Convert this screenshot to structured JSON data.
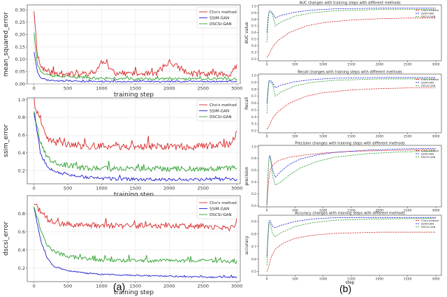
{
  "panel_labels": [
    "(a)",
    "(b)"
  ],
  "colors": {
    "red": "#d62728",
    "blue": "#1f1fd0",
    "green": "#2ca02c",
    "axis": "#333333",
    "grid": "#e6e6e6"
  },
  "chart_data": [
    {
      "id": "a1",
      "type": "line",
      "title": "",
      "xlabel": "training step",
      "ylabel": "mean_squared_error",
      "xlim": [
        -100,
        3050
      ],
      "ylim": [
        0,
        0.32
      ],
      "xticks": [
        0,
        500,
        1000,
        1500,
        2000,
        2500,
        3000
      ],
      "yticks": [
        0.0,
        0.05,
        0.1,
        0.15,
        0.2,
        0.25,
        0.3
      ],
      "ytick_labels": [
        "0.00",
        "0.05",
        "0.10",
        "0.15",
        "0.20",
        "0.25",
        "0.30"
      ],
      "legend": [
        "Cho's method",
        "SSIM-GAN",
        "DSCSI-GAN"
      ],
      "legend_position": "top-right",
      "series": [
        {
          "name": "Cho's method",
          "color": "red",
          "style": "solid",
          "x": [
            0,
            50,
            100,
            200,
            300,
            400,
            500,
            700,
            900,
            1000,
            1200,
            1500,
            1800,
            2000,
            2300,
            2600,
            2900,
            3000
          ],
          "y": [
            0.3,
            0.12,
            0.07,
            0.05,
            0.045,
            0.04,
            0.04,
            0.04,
            0.045,
            0.09,
            0.045,
            0.04,
            0.04,
            0.09,
            0.04,
            0.04,
            0.04,
            0.07
          ],
          "noise": 0.012,
          "seed": 11
        },
        {
          "name": "SSIM-GAN",
          "color": "blue",
          "style": "solid",
          "x": [
            0,
            50,
            100,
            200,
            400,
            700,
            1000,
            1500,
            2000,
            2500,
            3000
          ],
          "y": [
            0.13,
            0.05,
            0.025,
            0.015,
            0.012,
            0.01,
            0.01,
            0.01,
            0.01,
            0.01,
            0.01
          ],
          "noise": 0.003,
          "seed": 23
        },
        {
          "name": "DSCSI-GAN",
          "color": "green",
          "style": "solid",
          "x": [
            0,
            50,
            100,
            200,
            400,
            700,
            1000,
            1500,
            2000,
            2500,
            3000
          ],
          "y": [
            0.21,
            0.08,
            0.05,
            0.035,
            0.03,
            0.025,
            0.022,
            0.02,
            0.02,
            0.02,
            0.02
          ],
          "noise": 0.005,
          "seed": 37
        }
      ]
    },
    {
      "id": "a2",
      "type": "line",
      "title": "",
      "xlabel": "training step",
      "ylabel": "ssim_error",
      "xlim": [
        -100,
        3050
      ],
      "ylim": [
        0.05,
        1.02
      ],
      "xticks": [
        0,
        500,
        1000,
        1500,
        2000,
        2500,
        3000
      ],
      "yticks": [
        0.2,
        0.4,
        0.6,
        0.8,
        1.0
      ],
      "ytick_labels": [
        "0.2",
        "0.4",
        "0.6",
        "0.8",
        "1.0"
      ],
      "legend": [
        "Cho's method",
        "SSIM-GAN",
        "DSCSI-GAN"
      ],
      "legend_position": "top-right",
      "series": [
        {
          "name": "Cho's method",
          "color": "red",
          "style": "solid",
          "x": [
            0,
            100,
            200,
            400,
            700,
            1000,
            1500,
            2000,
            2500,
            2900,
            3000
          ],
          "y": [
            0.97,
            0.72,
            0.55,
            0.5,
            0.48,
            0.47,
            0.47,
            0.47,
            0.47,
            0.5,
            0.62
          ],
          "noise": 0.04,
          "seed": 41
        },
        {
          "name": "SSIM-GAN",
          "color": "blue",
          "style": "solid",
          "x": [
            0,
            100,
            200,
            400,
            700,
            1000,
            1500,
            2000,
            2500,
            3000
          ],
          "y": [
            0.86,
            0.38,
            0.24,
            0.17,
            0.13,
            0.11,
            0.1,
            0.1,
            0.1,
            0.1
          ],
          "noise": 0.018,
          "seed": 53
        },
        {
          "name": "DSCSI-GAN",
          "color": "green",
          "style": "solid",
          "x": [
            0,
            100,
            200,
            400,
            700,
            1000,
            1500,
            2000,
            2500,
            3000
          ],
          "y": [
            0.88,
            0.5,
            0.34,
            0.27,
            0.23,
            0.22,
            0.22,
            0.22,
            0.22,
            0.23
          ],
          "noise": 0.03,
          "seed": 67
        }
      ]
    },
    {
      "id": "a3",
      "type": "line",
      "title": "",
      "xlabel": "training step",
      "ylabel": "dscsi_error",
      "xlim": [
        -100,
        3050
      ],
      "ylim": [
        0.05,
        1.0
      ],
      "xticks": [
        0,
        500,
        1000,
        1500,
        2000,
        2500,
        3000
      ],
      "yticks": [
        0.2,
        0.4,
        0.6,
        0.8
      ],
      "ytick_labels": [
        "0.2",
        "0.4",
        "0.6",
        "0.8"
      ],
      "legend": [
        "Cho's method",
        "SSIM-GAN",
        "DSCSI-GAN"
      ],
      "legend_position": "top-right",
      "series": [
        {
          "name": "Cho's method",
          "color": "red",
          "style": "solid",
          "x": [
            0,
            100,
            200,
            300,
            500,
            1000,
            1500,
            2000,
            2500,
            2900,
            3000
          ],
          "y": [
            0.92,
            0.82,
            0.74,
            0.7,
            0.68,
            0.67,
            0.67,
            0.67,
            0.66,
            0.64,
            0.7
          ],
          "noise": 0.03,
          "seed": 71
        },
        {
          "name": "SSIM-GAN",
          "color": "blue",
          "style": "solid",
          "x": [
            0,
            100,
            200,
            300,
            500,
            800,
            1000,
            1500,
            2000,
            2500,
            3000
          ],
          "y": [
            0.87,
            0.5,
            0.3,
            0.22,
            0.17,
            0.14,
            0.13,
            0.12,
            0.11,
            0.1,
            0.1
          ],
          "noise": 0.008,
          "seed": 83
        },
        {
          "name": "DSCSI-GAN",
          "color": "green",
          "style": "solid",
          "x": [
            0,
            100,
            200,
            300,
            500,
            800,
            1000,
            1500,
            2000,
            2500,
            3000
          ],
          "y": [
            0.89,
            0.62,
            0.45,
            0.38,
            0.33,
            0.3,
            0.29,
            0.28,
            0.28,
            0.28,
            0.27
          ],
          "noise": 0.02,
          "seed": 97
        }
      ]
    },
    {
      "id": "b1",
      "type": "line",
      "title": "AUC changes with training steps with different methods",
      "xlabel": "",
      "ylabel": "AUC value",
      "xlim": [
        -150,
        3100
      ],
      "ylim": [
        0.17,
        1.02
      ],
      "xticks": [
        0,
        500,
        1000,
        1500,
        2000,
        2500,
        3000
      ],
      "yticks": [
        0.2,
        0.3,
        0.4,
        0.5,
        0.6,
        0.7,
        0.8,
        0.9,
        1.0
      ],
      "ytick_labels": [
        "0.2",
        "0.3",
        "0.4",
        "0.5",
        "0.6",
        "0.7",
        "0.8",
        "0.9",
        "1.0"
      ],
      "legend": [
        "Cho's method",
        "SSIM-GAN",
        "DSCSI-GAN"
      ],
      "legend_position": "top-right",
      "series": [
        {
          "name": "Cho's method",
          "color": "red",
          "style": "dashed",
          "x": [
            0,
            40,
            100,
            200,
            400,
            700,
            1000,
            1500,
            2000,
            2500,
            3000
          ],
          "y": [
            0.22,
            0.27,
            0.38,
            0.48,
            0.6,
            0.7,
            0.75,
            0.79,
            0.81,
            0.82,
            0.82
          ]
        },
        {
          "name": "SSIM-GAN",
          "color": "blue",
          "style": "dashed",
          "x": [
            0,
            30,
            60,
            100,
            150,
            250,
            500,
            800,
            1200,
            2000,
            3000
          ],
          "y": [
            0.6,
            0.92,
            0.93,
            0.9,
            0.82,
            0.86,
            0.91,
            0.94,
            0.96,
            0.97,
            0.97
          ]
        },
        {
          "name": "DSCSI-GAN",
          "color": "green",
          "style": "dashed",
          "x": [
            0,
            30,
            60,
            100,
            150,
            250,
            500,
            800,
            1200,
            2000,
            3000
          ],
          "y": [
            0.45,
            0.9,
            0.91,
            0.88,
            0.7,
            0.76,
            0.85,
            0.9,
            0.93,
            0.95,
            0.95
          ]
        }
      ]
    },
    {
      "id": "b2",
      "type": "line",
      "title": "Recall changes with training steps with  different methods",
      "xlabel": "",
      "ylabel": "Recall",
      "xlim": [
        -150,
        3100
      ],
      "ylim": [
        0.17,
        1.02
      ],
      "xticks": [
        0,
        500,
        1000,
        1500,
        2000,
        2500,
        3000
      ],
      "yticks": [
        0.2,
        0.3,
        0.4,
        0.5,
        0.6,
        0.7,
        0.8,
        0.9,
        1.0
      ],
      "ytick_labels": [
        "0.2",
        "0.3",
        "0.4",
        "0.5",
        "0.6",
        "0.7",
        "0.8",
        "0.9",
        "1.0"
      ],
      "legend": [
        "Cho's method",
        "SSIM-GAN",
        "DSCSI-GAN"
      ],
      "legend_position": "top-right",
      "series": [
        {
          "name": "Cho's method",
          "color": "red",
          "style": "dashed",
          "x": [
            0,
            40,
            100,
            200,
            400,
            700,
            1000,
            1500,
            2000,
            2500,
            3000
          ],
          "y": [
            0.22,
            0.27,
            0.38,
            0.48,
            0.6,
            0.7,
            0.75,
            0.79,
            0.81,
            0.82,
            0.82
          ]
        },
        {
          "name": "SSIM-GAN",
          "color": "blue",
          "style": "dashed",
          "x": [
            0,
            30,
            60,
            100,
            150,
            250,
            500,
            800,
            1200,
            2000,
            3000
          ],
          "y": [
            0.6,
            0.92,
            0.93,
            0.9,
            0.82,
            0.86,
            0.91,
            0.94,
            0.96,
            0.97,
            0.97
          ]
        },
        {
          "name": "DSCSI-GAN",
          "color": "green",
          "style": "dashed",
          "x": [
            0,
            30,
            60,
            100,
            150,
            250,
            500,
            800,
            1200,
            2000,
            3000
          ],
          "y": [
            0.45,
            0.9,
            0.91,
            0.88,
            0.7,
            0.76,
            0.85,
            0.9,
            0.93,
            0.95,
            0.95
          ]
        }
      ]
    },
    {
      "id": "b3",
      "type": "line",
      "title": "Precision changes with training steps with different methods",
      "xlabel": "",
      "ylabel": "precision",
      "xlim": [
        -150,
        3100
      ],
      "ylim": [
        -0.02,
        1.02
      ],
      "xticks": [
        0,
        500,
        1000,
        1500,
        2000,
        2500,
        3000
      ],
      "yticks": [
        0.0,
        0.2,
        0.4,
        0.6,
        0.8,
        1.0
      ],
      "ytick_labels": [
        "0.0",
        "0.2",
        "0.4",
        "0.6",
        "0.8",
        "1.0"
      ],
      "legend": [
        "Cho's method",
        "SSIM-GAN",
        "DSCSI-GAN"
      ],
      "legend_position": "top-right",
      "series": [
        {
          "name": "Cho's method",
          "color": "red",
          "style": "dashed",
          "x": [
            0,
            20,
            50,
            100,
            200,
            400,
            700,
            1000,
            1500,
            2000,
            2500,
            3000
          ],
          "y": [
            0.0,
            0.3,
            0.58,
            0.68,
            0.76,
            0.82,
            0.86,
            0.89,
            0.92,
            0.93,
            0.94,
            0.95
          ]
        },
        {
          "name": "SSIM-GAN",
          "color": "blue",
          "style": "dashed",
          "x": [
            0,
            30,
            60,
            100,
            150,
            250,
            400,
            600,
            900,
            1200,
            1800,
            2400,
            3000
          ],
          "y": [
            0.02,
            0.8,
            0.85,
            0.6,
            0.48,
            0.58,
            0.7,
            0.79,
            0.86,
            0.9,
            0.94,
            0.96,
            0.97
          ]
        },
        {
          "name": "DSCSI-GAN",
          "color": "green",
          "style": "dashed",
          "x": [
            0,
            30,
            60,
            100,
            150,
            250,
            400,
            600,
            900,
            1200,
            1800,
            2400,
            3000
          ],
          "y": [
            0.02,
            0.78,
            0.84,
            0.5,
            0.35,
            0.4,
            0.52,
            0.64,
            0.75,
            0.82,
            0.88,
            0.91,
            0.92
          ]
        }
      ]
    },
    {
      "id": "b4",
      "type": "line",
      "title": "Accuracy changes with training steps with different methods",
      "xlabel": "step",
      "ylabel": "accuracy",
      "xlim": [
        -150,
        3100
      ],
      "ylim": [
        0.47,
        0.95
      ],
      "xticks": [
        0,
        500,
        1000,
        1500,
        2000,
        2500,
        3000
      ],
      "yticks": [
        0.5,
        0.6,
        0.7,
        0.8,
        0.9
      ],
      "ytick_labels": [
        "0.5",
        "0.6",
        "0.7",
        "0.8",
        "0.9"
      ],
      "legend": [
        "Cho's method",
        "SSIM-GAN",
        "DSCSI-GAN"
      ],
      "legend_position": "top-right",
      "series": [
        {
          "name": "Cho's method",
          "color": "red",
          "style": "dashed",
          "x": [
            0,
            40,
            80,
            150,
            300,
            500,
            800,
            1200,
            1600,
            2000,
            2500,
            3000
          ],
          "y": [
            0.5,
            0.55,
            0.62,
            0.68,
            0.73,
            0.765,
            0.79,
            0.805,
            0.81,
            0.815,
            0.815,
            0.815
          ]
        },
        {
          "name": "SSIM-GAN",
          "color": "blue",
          "style": "dashed",
          "x": [
            0,
            30,
            60,
            100,
            150,
            250,
            500,
            800,
            1200,
            2000,
            3000
          ],
          "y": [
            0.62,
            0.9,
            0.91,
            0.86,
            0.85,
            0.87,
            0.9,
            0.92,
            0.93,
            0.93,
            0.93
          ]
        },
        {
          "name": "DSCSI-GAN",
          "color": "green",
          "style": "dashed",
          "x": [
            0,
            30,
            60,
            100,
            150,
            250,
            500,
            800,
            1200,
            2000,
            3000
          ],
          "y": [
            0.55,
            0.88,
            0.89,
            0.8,
            0.78,
            0.81,
            0.86,
            0.89,
            0.91,
            0.92,
            0.925
          ]
        }
      ]
    }
  ]
}
